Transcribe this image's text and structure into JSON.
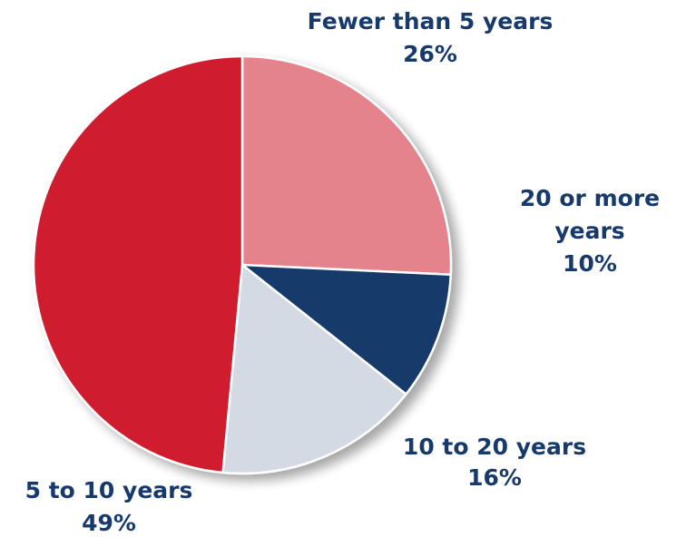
{
  "chart_data": {
    "type": "pie",
    "categories": [
      "Fewer than 5 years",
      "20 or more years",
      "10 to 20 years",
      "5 to 10 years"
    ],
    "values": [
      26,
      10,
      16,
      49
    ],
    "slices": [
      {
        "name": "Fewer than 5 years",
        "value": 26,
        "label_lines": [
          "Fewer than 5 years",
          "26%"
        ],
        "color": "#e4838c"
      },
      {
        "name": "20 or more years",
        "value": 10,
        "label_lines": [
          "20 or more",
          "years",
          "10%"
        ],
        "color": "#173a6b"
      },
      {
        "name": "10 to 20 years",
        "value": 16,
        "label_lines": [
          "10 to 20 years",
          "16%"
        ],
        "color": "#d3dae3"
      },
      {
        "name": "5 to 10 years",
        "value": 49,
        "label_lines": [
          "5 to 10 years",
          "49%"
        ],
        "color": "#cf1f2e"
      }
    ],
    "label_color": "#173a6b",
    "legend": "none"
  }
}
